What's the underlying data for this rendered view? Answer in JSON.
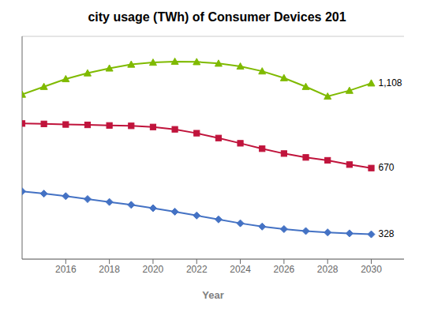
{
  "chart_data": {
    "type": "line",
    "title": "city usage (TWh) of Consumer Devices 201",
    "x_label": "Year",
    "x": [
      2014,
      2015,
      2016,
      2017,
      2018,
      2019,
      2020,
      2021,
      2022,
      2023,
      2024,
      2025,
      2026,
      2027,
      2028,
      2029,
      2030
    ],
    "series": [
      {
        "color": "#7FBA00",
        "marker": "triangle",
        "values": [
          1050,
          1090,
          1130,
          1160,
          1185,
          1205,
          1215,
          1220,
          1218,
          1210,
          1195,
          1170,
          1135,
          1090,
          1040,
          1070,
          1108
        ]
      },
      {
        "color": "#C0143C",
        "marker": "square",
        "values": [
          900,
          898,
          895,
          893,
          890,
          888,
          882,
          870,
          850,
          825,
          798,
          770,
          745,
          725,
          710,
          688,
          670
        ]
      },
      {
        "color": "#4472C4",
        "marker": "diamond",
        "values": [
          550,
          538,
          525,
          510,
          495,
          480,
          463,
          445,
          425,
          405,
          385,
          368,
          355,
          345,
          338,
          333,
          328
        ]
      }
    ],
    "annotations": [
      "1,108",
      "670",
      "328"
    ],
    "xlim": [
      2014,
      2031.5
    ],
    "ylim": [
      200,
      1350
    ],
    "xticks": [
      2016,
      2018,
      2020,
      2022,
      2024,
      2026,
      2028,
      2030
    ],
    "yticks": [
      200,
      400,
      600,
      800,
      1000,
      1200
    ],
    "grid": true,
    "tick_labels": "x"
  }
}
